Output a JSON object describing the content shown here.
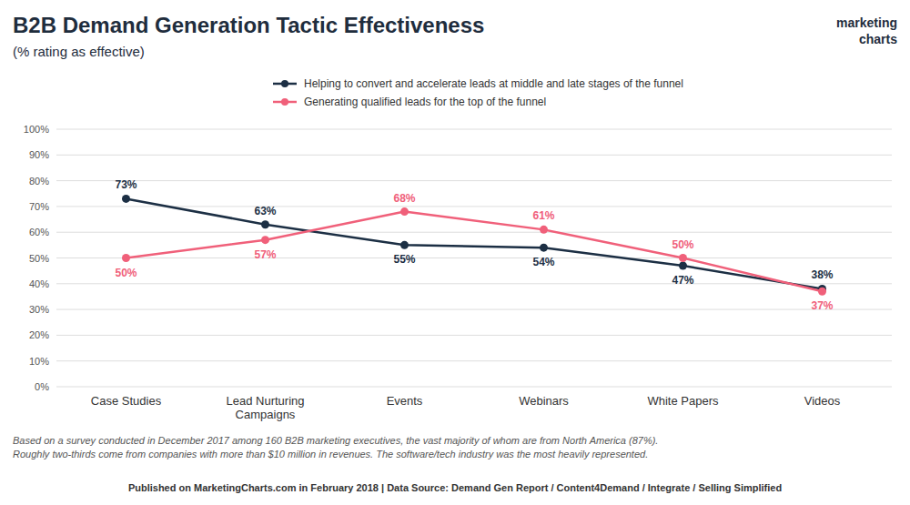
{
  "chart_data": {
    "type": "line",
    "title": "B2B Demand Generation Tactic Effectiveness",
    "subtitle": "(% rating as effective)",
    "annotations": [
      "Based on a survey conducted in December 2017 among 160 B2B marketing executives, the vast majority of whom are from North America (87%).\nRoughly two-thirds come from companies with more than $10 million in revenues. The software/tech industry was the most heavily represented.",
      "Published on MarketingCharts.com in February 2018 | Data Source: Demand Gen Report / Content4Demand / Integrate / Selling Simplified",
      "marketing",
      "charts"
    ],
    "categories": [
      "Case Studies",
      "Lead Nurturing\nCampaigns",
      "Events",
      "Webinars",
      "White Papers",
      "Videos"
    ],
    "series": [
      {
        "name": "Helping to convert and accelerate leads at middle and late stages of the funnel",
        "color": "#1c2f44",
        "values": [
          73,
          63,
          55,
          54,
          47,
          38
        ],
        "value_labels": [
          "73%",
          "63%",
          "55%",
          "54%",
          "47%",
          "38%"
        ]
      },
      {
        "name": "Generating qualified leads for the top of the funnel",
        "color": "#f0607a",
        "values": [
          50,
          57,
          68,
          61,
          50,
          37
        ],
        "value_labels": [
          "50%",
          "57%",
          "68%",
          "61%",
          "50%",
          "37%"
        ]
      }
    ],
    "ylim": [
      0,
      100
    ],
    "yticks": [
      {
        "value": 0,
        "label": "0%"
      },
      {
        "value": 10,
        "label": "10%"
      },
      {
        "value": 20,
        "label": "20%"
      },
      {
        "value": 30,
        "label": "30%"
      },
      {
        "value": 40,
        "label": "40%"
      },
      {
        "value": 50,
        "label": "50%"
      },
      {
        "value": 60,
        "label": "60%"
      },
      {
        "value": 70,
        "label": "70%"
      },
      {
        "value": 80,
        "label": "80%"
      },
      {
        "value": 90,
        "label": "90%"
      },
      {
        "value": 100,
        "label": "100%"
      }
    ],
    "grid": true,
    "legend": "top",
    "data_labels": true,
    "marker": "circle"
  }
}
